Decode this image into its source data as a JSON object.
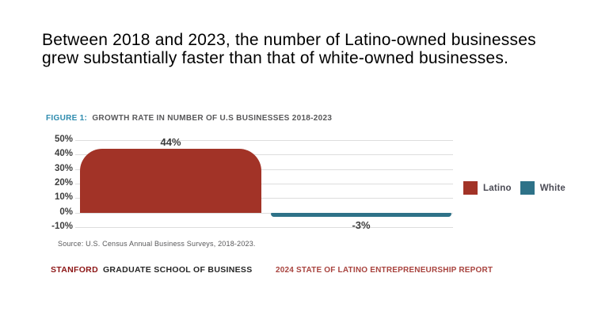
{
  "slide": {
    "title_lines": [
      "Between 2018 and 2023, the number of Latino-owned businesses",
      "grew substantially faster than that of white-owned businesses."
    ]
  },
  "figure": {
    "label": "FIGURE 1:",
    "title": "GROWTH RATE IN NUMBER OF U.S BUSINESSES 2018-2023"
  },
  "chart_data": {
    "type": "bar",
    "title": "GROWTH RATE IN NUMBER OF U.S BUSINESSES 2018-2023",
    "categories": [
      "Latino",
      "White"
    ],
    "values": [
      44,
      -3
    ],
    "value_labels": [
      "44%",
      "-3%"
    ],
    "series_colors": [
      "#A23327",
      "#2E7288"
    ],
    "ylim": [
      -10,
      50
    ],
    "yticks": [
      50,
      40,
      30,
      20,
      10,
      0,
      -10
    ],
    "ytick_labels": [
      "50%",
      "40%",
      "30%",
      "20%",
      "10%",
      "0%",
      "-10%"
    ],
    "grid": true,
    "legend": [
      {
        "label": "Latino",
        "color": "#A23327"
      },
      {
        "label": "White",
        "color": "#2E7288"
      }
    ],
    "legend_position": "right",
    "xlabel": "",
    "ylabel": ""
  },
  "source": "Source: U.S. Census Annual Business Surveys, 2018-2023.",
  "footer": {
    "brand": "STANFORD",
    "brand_suffix": "GRADUATE SCHOOL OF BUSINESS",
    "report": "2024 STATE OF LATINO ENTREPRENEURSHIP REPORT"
  },
  "colors": {
    "figure_label": "#2D8BAE",
    "gridline": "#DDDDDD",
    "stanford_red": "#8C1515",
    "report_red": "#A8433E"
  }
}
